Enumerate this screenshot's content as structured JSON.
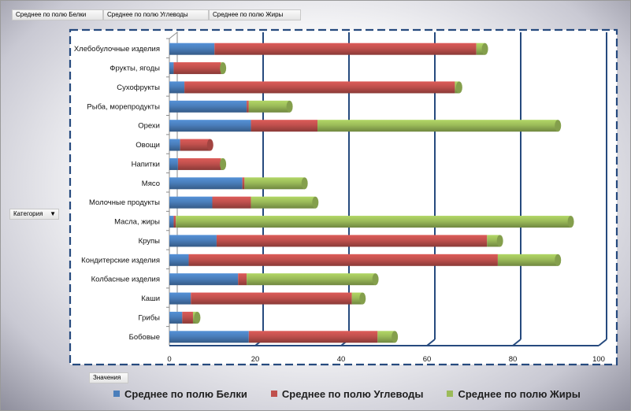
{
  "toolbar": {
    "buttons": [
      "Среднее по полю Белки",
      "Среднее по полю Углеводы",
      "Среднее по полю Жиры"
    ],
    "category_button": "Категория",
    "values_button": "Значения"
  },
  "colors": {
    "belki": "#4a7ebb",
    "uglevody": "#c0504d",
    "zhiry": "#9bbb59",
    "grid": "#264a7e"
  },
  "chart_data": {
    "type": "bar",
    "orientation": "horizontal",
    "stacked": true,
    "categories": [
      "Хлебобулочные изделия",
      "Фрукты, ягоды",
      "Сухофрукты",
      "Рыба, морепродукты",
      "Орехи",
      "Овощи",
      "Напитки",
      "Мясо",
      "Молочные продукты",
      "Масла, жиры",
      "Крупы",
      "Кондитерские изделия",
      "Колбасные изделия",
      "Каши",
      "Грибы",
      "Бобовые"
    ],
    "series": [
      {
        "name": "Среднее по полю Белки",
        "values": [
          10.5,
          1,
          3.5,
          18,
          19,
          2.5,
          2,
          17,
          10,
          1,
          11,
          4.5,
          16,
          5,
          3,
          18.5
        ]
      },
      {
        "name": "Среднее по полю Углеводы",
        "values": [
          61,
          11,
          63,
          0.5,
          15.5,
          7,
          10,
          0.5,
          9,
          0.5,
          63,
          72,
          2,
          37.5,
          2.5,
          30
        ]
      },
      {
        "name": "Среднее по полю Жиры",
        "values": [
          2,
          0.5,
          1,
          9.5,
          56,
          0,
          0.5,
          14,
          15,
          92,
          3,
          14,
          30,
          2.5,
          1,
          4
        ]
      }
    ],
    "xlim": [
      0,
      100
    ],
    "x_ticks": [
      0,
      20,
      40,
      60,
      80,
      100
    ],
    "grid": true,
    "legend_position": "bottom"
  }
}
